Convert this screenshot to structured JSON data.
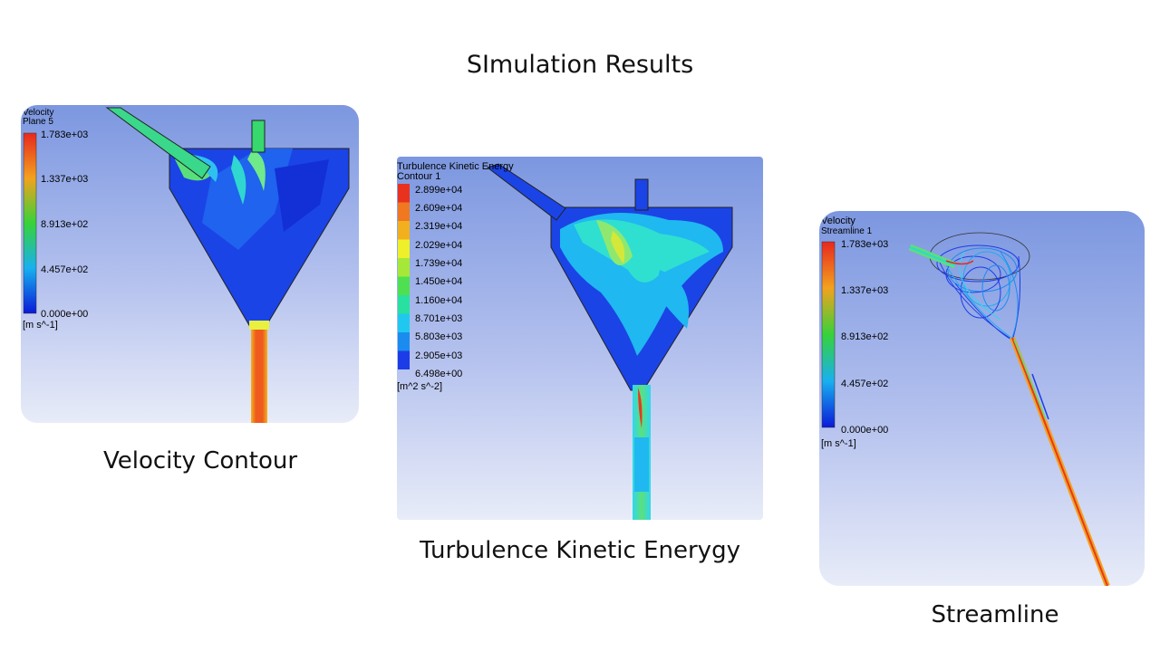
{
  "page": {
    "title": "SImulation Results"
  },
  "panels": [
    {
      "caption": "Velocity Contour",
      "legend": {
        "title": "Velocity",
        "subtitle": "Plane 5",
        "ticks": [
          "1.783e+03",
          "1.337e+03",
          "8.913e+02",
          "4.457e+02",
          "0.000e+00"
        ],
        "unit": "[m s^-1]"
      }
    },
    {
      "caption": "Turbulence Kinetic Enerygy",
      "legend": {
        "title": "Turbulence Kinetic Energy",
        "subtitle": "Contour 1",
        "ticks": [
          "2.899e+04",
          "2.609e+04",
          "2.319e+04",
          "2.029e+04",
          "1.739e+04",
          "1.450e+04",
          "1.160e+04",
          "8.701e+03",
          "5.803e+03",
          "2.905e+03",
          "6.498e+00"
        ],
        "unit": "[m^2 s^-2]"
      }
    },
    {
      "caption": "Streamline",
      "legend": {
        "title": "Velocity",
        "subtitle": "Streamline 1",
        "ticks": [
          "1.783e+03",
          "1.337e+03",
          "8.913e+02",
          "4.457e+02",
          "0.000e+00"
        ],
        "unit": "[m s^-1]"
      }
    }
  ]
}
